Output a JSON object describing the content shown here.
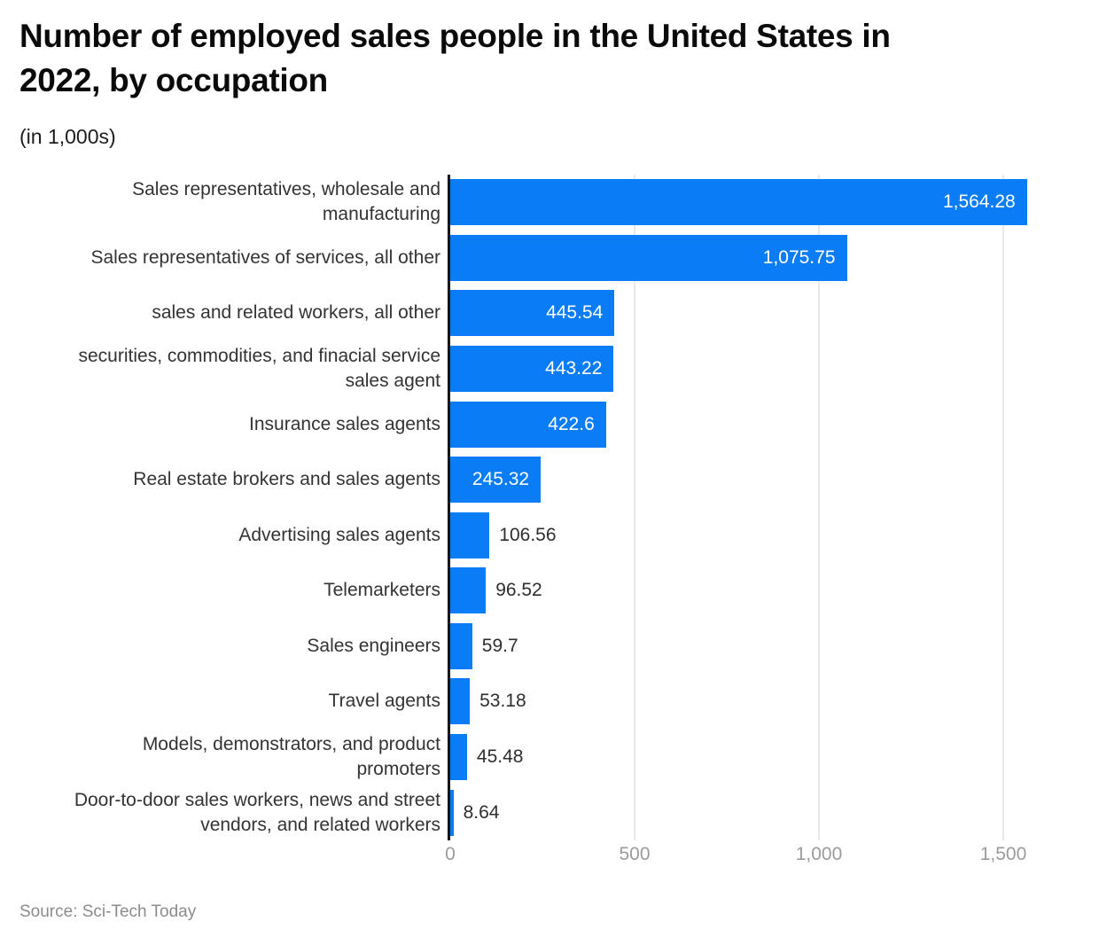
{
  "header": {
    "title_line1": "Number of employed sales people in the United States in",
    "title_line2": "2022, by occupation",
    "subtitle": "(in 1,000s)"
  },
  "footer": {
    "source": "Source: Sci-Tech Today"
  },
  "colors": {
    "bar": "#0a7cf6",
    "axis_line": "#141414",
    "gridline": "#e9e9e9",
    "category_label": "#333333",
    "value_inside": "#ffffff",
    "value_outside": "#2e2e2e",
    "tick_label": "#9b9b9b",
    "source_text": "#8c8c8c",
    "background": "#ffffff"
  },
  "chart_data": {
    "type": "bar",
    "orientation": "horizontal",
    "title": "Number of employed sales people in the United States in 2022, by occupation",
    "unit_note": "(in 1,000s)",
    "xlabel": "",
    "ylabel": "",
    "xlim": [
      0,
      1586
    ],
    "xticks": [
      0,
      500,
      1000,
      1500
    ],
    "xtick_labels": [
      "0",
      "500",
      "1,000",
      "1,500"
    ],
    "grid": "vertical-light",
    "legend": "none",
    "categories": [
      "Sales representatives, wholesale and manufacturing",
      "Sales representatives of services, all other",
      "sales and related workers, all other",
      "securities, commodities, and finacial service sales agent",
      "Insurance sales agents",
      "Real estate brokers and sales agents",
      "Advertising sales agents",
      "Telemarketers",
      "Sales engineers",
      "Travel agents",
      "Models, demonstrators, and product promoters",
      "Door-to-door sales workers, news and street vendors, and related workers"
    ],
    "label_lines": [
      [
        "Sales representatives, wholesale and",
        "manufacturing"
      ],
      [
        "Sales representatives of services, all other"
      ],
      [
        "sales and related workers, all other"
      ],
      [
        "securities, commodities, and finacial service",
        "sales agent"
      ],
      [
        "Insurance sales agents"
      ],
      [
        "Real estate brokers and sales agents"
      ],
      [
        "Advertising sales agents"
      ],
      [
        "Telemarketers"
      ],
      [
        "Sales engineers"
      ],
      [
        "Travel agents"
      ],
      [
        "Models, demonstrators, and product",
        "promoters"
      ],
      [
        "Door-to-door sales workers, news and street",
        "vendors, and related workers"
      ]
    ],
    "values": [
      1564.28,
      1075.75,
      445.54,
      443.22,
      422.6,
      245.32,
      106.56,
      96.52,
      59.7,
      53.18,
      45.48,
      8.64
    ],
    "value_labels": [
      "1,564.28",
      "1,075.75",
      "445.54",
      "443.22",
      "422.6",
      "245.32",
      "106.56",
      "96.52",
      "59.7",
      "53.18",
      "45.48",
      "8.64"
    ],
    "value_label_placement": [
      "inside",
      "inside",
      "inside",
      "inside",
      "inside",
      "inside",
      "outside",
      "outside",
      "outside",
      "outside",
      "outside",
      "outside"
    ]
  }
}
